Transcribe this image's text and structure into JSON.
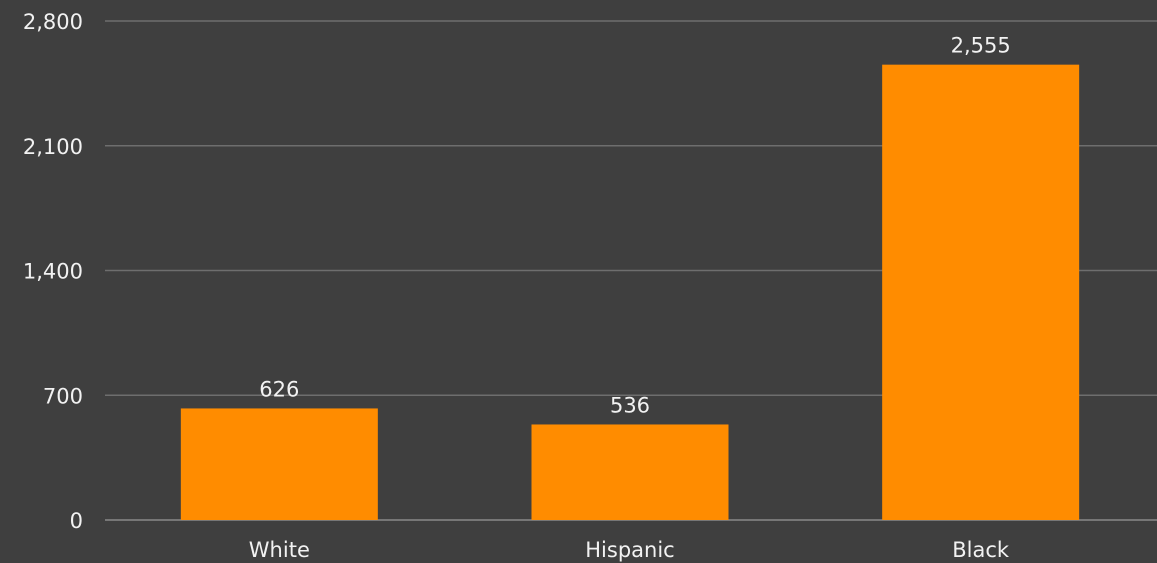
{
  "chart_data": {
    "type": "bar",
    "title": "",
    "xlabel": "",
    "ylabel": "",
    "categories": [
      "White",
      "Hispanic",
      "Black"
    ],
    "values": [
      626,
      536,
      2555
    ],
    "data_labels": [
      "626",
      "536",
      "2,555"
    ],
    "yticks": [
      0,
      700,
      1400,
      2100,
      2800
    ],
    "ytick_labels": [
      "0",
      "700",
      "1,400",
      "2,100",
      "2,800"
    ],
    "ylim": [
      0,
      2800
    ],
    "grid": true,
    "legend": "none",
    "colors": {
      "bar": "#ff8c00",
      "background": "#3f3f3f",
      "grid": "#6e6e6e",
      "text": "#f2f2f2"
    }
  }
}
